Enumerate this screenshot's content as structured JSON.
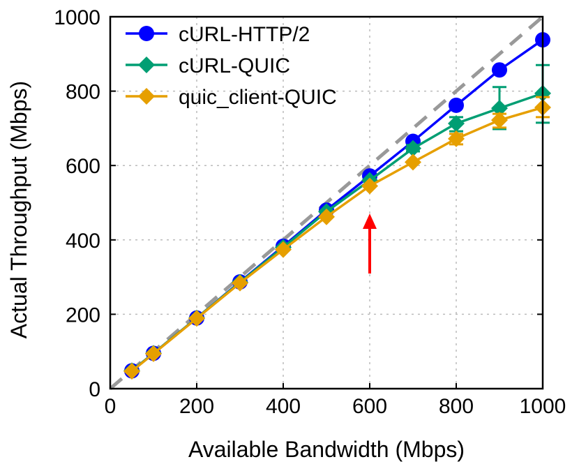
{
  "chart_data": {
    "type": "line",
    "title": "",
    "xlabel": "Available Bandwidth (Mbps)",
    "ylabel": "Actual Throughput (Mbps)",
    "xlim": [
      0,
      1000
    ],
    "ylim": [
      0,
      1000
    ],
    "xticks": [
      "0",
      "200",
      "400",
      "600",
      "800",
      "1000"
    ],
    "yticks": [
      "0",
      "200",
      "400",
      "600",
      "800",
      "1000"
    ],
    "grid": true,
    "legend_position": "top-left",
    "x": [
      50,
      100,
      200,
      300,
      400,
      500,
      600,
      700,
      800,
      900,
      1000
    ],
    "series": [
      {
        "name": "cURL-HTTP/2",
        "color": "#0000ff",
        "marker": "circle",
        "values": [
          48,
          95,
          190,
          287,
          383,
          480,
          572,
          665,
          762,
          857,
          938
        ],
        "err_low": [
          null,
          null,
          null,
          null,
          null,
          null,
          null,
          null,
          null,
          null,
          null
        ],
        "err_high": [
          null,
          null,
          null,
          null,
          null,
          null,
          null,
          null,
          null,
          null,
          null
        ]
      },
      {
        "name": "cURL-QUIC",
        "color": "#009e73",
        "marker": "diamond",
        "values": [
          48,
          95,
          190,
          286,
          380,
          476,
          560,
          646,
          713,
          754,
          794
        ],
        "err_low": [
          null,
          null,
          null,
          null,
          null,
          null,
          null,
          638,
          692,
          698,
          715
        ],
        "err_high": [
          null,
          null,
          null,
          null,
          null,
          null,
          null,
          655,
          730,
          811,
          870
        ]
      },
      {
        "name": "quic_client-QUIC",
        "color": "#e69f00",
        "marker": "diamond",
        "values": [
          47,
          94,
          189,
          284,
          374,
          462,
          545,
          609,
          672,
          722,
          756
        ],
        "err_low": [
          null,
          null,
          null,
          null,
          null,
          null,
          null,
          null,
          657,
          702,
          730
        ],
        "err_high": [
          null,
          null,
          null,
          null,
          null,
          null,
          null,
          null,
          685,
          739,
          784
        ]
      }
    ],
    "reference_line": {
      "type": "y=x",
      "color": "#999999",
      "style": "dashed"
    },
    "annotation": {
      "type": "arrow",
      "color": "#ff0000",
      "x": 600
    }
  }
}
